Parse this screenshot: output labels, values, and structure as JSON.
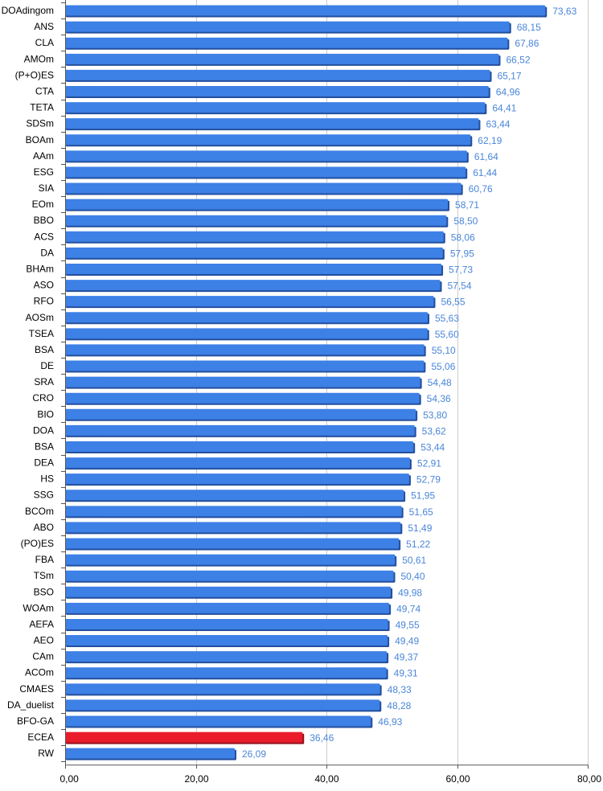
{
  "chart_data": {
    "type": "bar",
    "orientation": "horizontal",
    "categories": [
      "DOAdingom",
      "ANS",
      "CLA",
      "AMOm",
      "(P+O)ES",
      "CTA",
      "TETA",
      "SDSm",
      "BOAm",
      "AAm",
      "ESG",
      "SIA",
      "EOm",
      "BBO",
      "ACS",
      "DA",
      "BHAm",
      "ASO",
      "RFO",
      "AOSm",
      "TSEA",
      "BSA",
      "DE",
      "SRA",
      "CRO",
      "BIO",
      "DOA",
      "BSA",
      "DEA",
      "HS",
      "SSG",
      "BCOm",
      "ABO",
      "(PO)ES",
      "FBA",
      "TSm",
      "BSO",
      "WOAm",
      "AEFA",
      "AEO",
      "CAm",
      "ACOm",
      "CMAES",
      "DA_duelist",
      "BFO-GA",
      "ECEA",
      "RW"
    ],
    "values": [
      73.63,
      68.15,
      67.86,
      66.52,
      65.17,
      64.96,
      64.41,
      63.44,
      62.19,
      61.64,
      61.44,
      60.76,
      58.71,
      58.5,
      58.06,
      57.95,
      57.73,
      57.54,
      56.55,
      55.63,
      55.6,
      55.1,
      55.06,
      54.48,
      54.36,
      53.8,
      53.62,
      53.44,
      52.91,
      52.79,
      51.95,
      51.65,
      51.49,
      51.22,
      50.61,
      50.4,
      49.98,
      49.74,
      49.55,
      49.49,
      49.37,
      49.31,
      48.33,
      48.28,
      46.93,
      36.46,
      26.09
    ],
    "value_labels": [
      "73,63",
      "68,15",
      "67,86",
      "66,52",
      "65,17",
      "64,96",
      "64,41",
      "63,44",
      "62,19",
      "61,64",
      "61,44",
      "60,76",
      "58,71",
      "58,50",
      "58,06",
      "57,95",
      "57,73",
      "57,54",
      "56,55",
      "55,63",
      "55,60",
      "55,10",
      "55,06",
      "54,48",
      "54,36",
      "53,80",
      "53,62",
      "53,44",
      "52,91",
      "52,79",
      "51,95",
      "51,65",
      "51,49",
      "51,22",
      "50,61",
      "50,40",
      "49,98",
      "49,74",
      "49,55",
      "49,49",
      "49,37",
      "49,31",
      "48,33",
      "48,28",
      "46,93",
      "36,46",
      "26,09"
    ],
    "highlight_category_index": 45,
    "xlim": [
      0,
      80
    ],
    "x_ticks": [
      0,
      20,
      40,
      60,
      80
    ],
    "x_tick_labels": [
      "0,00",
      "20,00",
      "40,00",
      "60,00",
      "80,00"
    ],
    "grid": "vertical",
    "title": "",
    "xlabel": "",
    "ylabel": "",
    "colors": {
      "bar": "#3d80e6",
      "bar_shadow": "#234f9e",
      "highlight": "#ea1c2c",
      "highlight_shadow": "#93111b",
      "value_label": "#4a86d8",
      "grid": "#cccccc",
      "axis": "#555555",
      "text": "#000000"
    }
  }
}
